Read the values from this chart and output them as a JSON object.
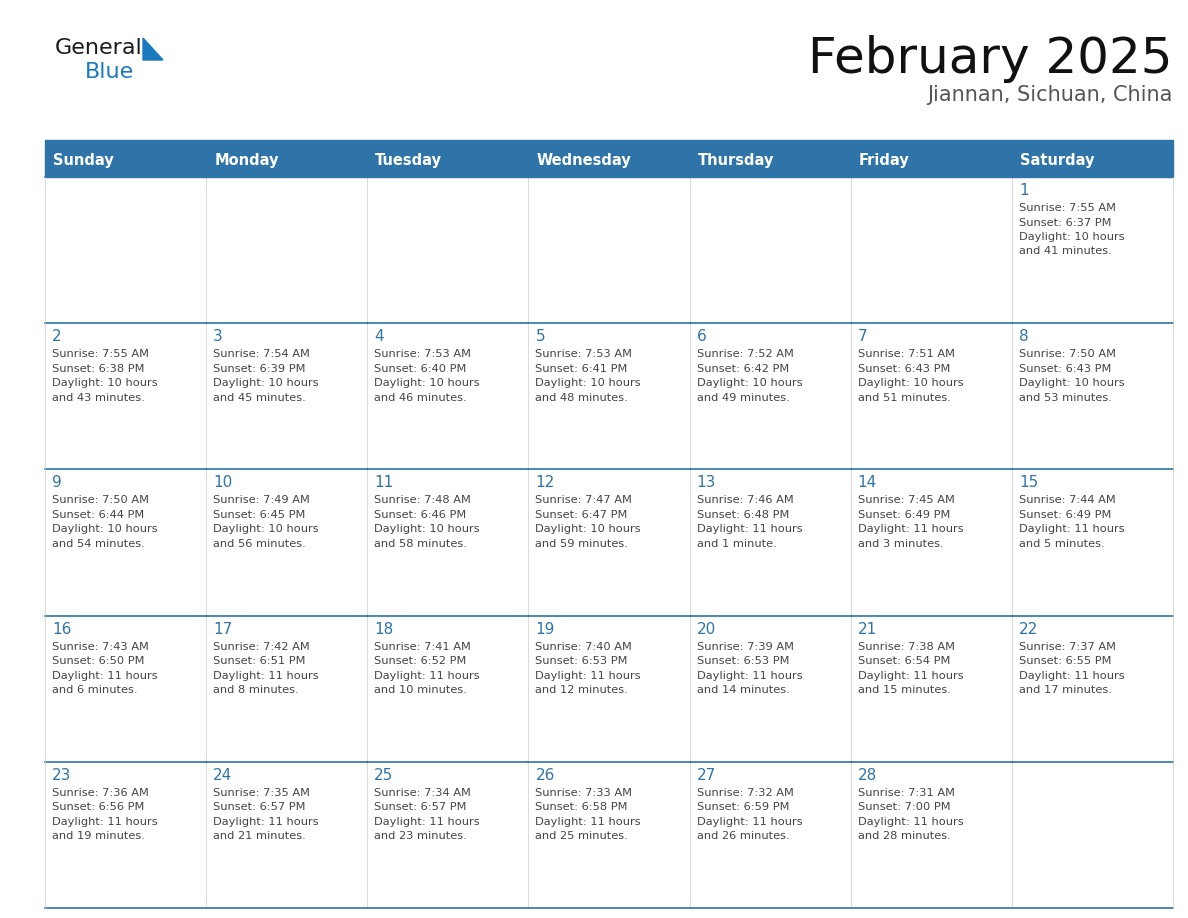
{
  "title": "February 2025",
  "subtitle": "Jiannan, Sichuan, China",
  "header_bg": "#2E74A8",
  "header_text": "#FFFFFF",
  "cell_bg": "#FFFFFF",
  "day_number_color": "#2E74A8",
  "text_color": "#444444",
  "border_color": "#2E74A8",
  "days_of_week": [
    "Sunday",
    "Monday",
    "Tuesday",
    "Wednesday",
    "Thursday",
    "Friday",
    "Saturday"
  ],
  "weeks": [
    [
      {
        "day": "",
        "sunrise": "",
        "sunset": "",
        "daylight1": "",
        "daylight2": ""
      },
      {
        "day": "",
        "sunrise": "",
        "sunset": "",
        "daylight1": "",
        "daylight2": ""
      },
      {
        "day": "",
        "sunrise": "",
        "sunset": "",
        "daylight1": "",
        "daylight2": ""
      },
      {
        "day": "",
        "sunrise": "",
        "sunset": "",
        "daylight1": "",
        "daylight2": ""
      },
      {
        "day": "",
        "sunrise": "",
        "sunset": "",
        "daylight1": "",
        "daylight2": ""
      },
      {
        "day": "",
        "sunrise": "",
        "sunset": "",
        "daylight1": "",
        "daylight2": ""
      },
      {
        "day": "1",
        "sunrise": "7:55 AM",
        "sunset": "6:37 PM",
        "daylight1": "10 hours",
        "daylight2": "and 41 minutes."
      }
    ],
    [
      {
        "day": "2",
        "sunrise": "7:55 AM",
        "sunset": "6:38 PM",
        "daylight1": "10 hours",
        "daylight2": "and 43 minutes."
      },
      {
        "day": "3",
        "sunrise": "7:54 AM",
        "sunset": "6:39 PM",
        "daylight1": "10 hours",
        "daylight2": "and 45 minutes."
      },
      {
        "day": "4",
        "sunrise": "7:53 AM",
        "sunset": "6:40 PM",
        "daylight1": "10 hours",
        "daylight2": "and 46 minutes."
      },
      {
        "day": "5",
        "sunrise": "7:53 AM",
        "sunset": "6:41 PM",
        "daylight1": "10 hours",
        "daylight2": "and 48 minutes."
      },
      {
        "day": "6",
        "sunrise": "7:52 AM",
        "sunset": "6:42 PM",
        "daylight1": "10 hours",
        "daylight2": "and 49 minutes."
      },
      {
        "day": "7",
        "sunrise": "7:51 AM",
        "sunset": "6:43 PM",
        "daylight1": "10 hours",
        "daylight2": "and 51 minutes."
      },
      {
        "day": "8",
        "sunrise": "7:50 AM",
        "sunset": "6:43 PM",
        "daylight1": "10 hours",
        "daylight2": "and 53 minutes."
      }
    ],
    [
      {
        "day": "9",
        "sunrise": "7:50 AM",
        "sunset": "6:44 PM",
        "daylight1": "10 hours",
        "daylight2": "and 54 minutes."
      },
      {
        "day": "10",
        "sunrise": "7:49 AM",
        "sunset": "6:45 PM",
        "daylight1": "10 hours",
        "daylight2": "and 56 minutes."
      },
      {
        "day": "11",
        "sunrise": "7:48 AM",
        "sunset": "6:46 PM",
        "daylight1": "10 hours",
        "daylight2": "and 58 minutes."
      },
      {
        "day": "12",
        "sunrise": "7:47 AM",
        "sunset": "6:47 PM",
        "daylight1": "10 hours",
        "daylight2": "and 59 minutes."
      },
      {
        "day": "13",
        "sunrise": "7:46 AM",
        "sunset": "6:48 PM",
        "daylight1": "11 hours",
        "daylight2": "and 1 minute."
      },
      {
        "day": "14",
        "sunrise": "7:45 AM",
        "sunset": "6:49 PM",
        "daylight1": "11 hours",
        "daylight2": "and 3 minutes."
      },
      {
        "day": "15",
        "sunrise": "7:44 AM",
        "sunset": "6:49 PM",
        "daylight1": "11 hours",
        "daylight2": "and 5 minutes."
      }
    ],
    [
      {
        "day": "16",
        "sunrise": "7:43 AM",
        "sunset": "6:50 PM",
        "daylight1": "11 hours",
        "daylight2": "and 6 minutes."
      },
      {
        "day": "17",
        "sunrise": "7:42 AM",
        "sunset": "6:51 PM",
        "daylight1": "11 hours",
        "daylight2": "and 8 minutes."
      },
      {
        "day": "18",
        "sunrise": "7:41 AM",
        "sunset": "6:52 PM",
        "daylight1": "11 hours",
        "daylight2": "and 10 minutes."
      },
      {
        "day": "19",
        "sunrise": "7:40 AM",
        "sunset": "6:53 PM",
        "daylight1": "11 hours",
        "daylight2": "and 12 minutes."
      },
      {
        "day": "20",
        "sunrise": "7:39 AM",
        "sunset": "6:53 PM",
        "daylight1": "11 hours",
        "daylight2": "and 14 minutes."
      },
      {
        "day": "21",
        "sunrise": "7:38 AM",
        "sunset": "6:54 PM",
        "daylight1": "11 hours",
        "daylight2": "and 15 minutes."
      },
      {
        "day": "22",
        "sunrise": "7:37 AM",
        "sunset": "6:55 PM",
        "daylight1": "11 hours",
        "daylight2": "and 17 minutes."
      }
    ],
    [
      {
        "day": "23",
        "sunrise": "7:36 AM",
        "sunset": "6:56 PM",
        "daylight1": "11 hours",
        "daylight2": "and 19 minutes."
      },
      {
        "day": "24",
        "sunrise": "7:35 AM",
        "sunset": "6:57 PM",
        "daylight1": "11 hours",
        "daylight2": "and 21 minutes."
      },
      {
        "day": "25",
        "sunrise": "7:34 AM",
        "sunset": "6:57 PM",
        "daylight1": "11 hours",
        "daylight2": "and 23 minutes."
      },
      {
        "day": "26",
        "sunrise": "7:33 AM",
        "sunset": "6:58 PM",
        "daylight1": "11 hours",
        "daylight2": "and 25 minutes."
      },
      {
        "day": "27",
        "sunrise": "7:32 AM",
        "sunset": "6:59 PM",
        "daylight1": "11 hours",
        "daylight2": "and 26 minutes."
      },
      {
        "day": "28",
        "sunrise": "7:31 AM",
        "sunset": "7:00 PM",
        "daylight1": "11 hours",
        "daylight2": "and 28 minutes."
      },
      {
        "day": "",
        "sunrise": "",
        "sunset": "",
        "daylight1": "",
        "daylight2": ""
      }
    ]
  ],
  "logo_general_color": "#1a1a1a",
  "logo_blue_color": "#1a7abf",
  "logo_triangle_color": "#1a7abf",
  "fig_width": 11.88,
  "fig_height": 9.18,
  "dpi": 100
}
